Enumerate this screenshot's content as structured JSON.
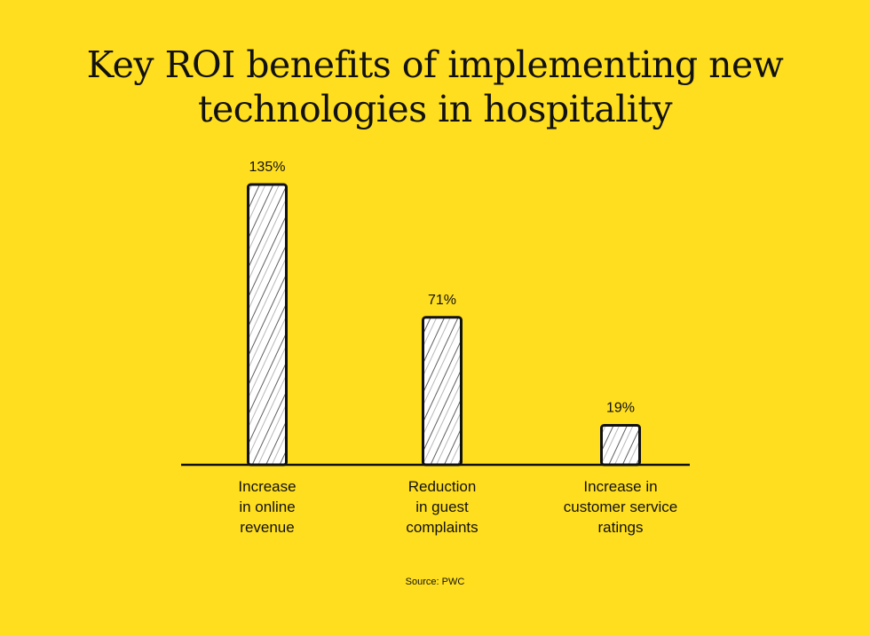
{
  "title_lines": [
    "Key ROI benefits of implementing new",
    "technologies in hospitality"
  ],
  "source": "Source: PWC",
  "colors": {
    "background": "#FFDE1F",
    "bar_fill": "#FFFFFF",
    "ink": "#111111"
  },
  "chart_data": {
    "type": "bar",
    "categories": [
      [
        "Increase",
        "in online",
        "revenue"
      ],
      [
        "Reduction",
        "in guest",
        "complaints"
      ],
      [
        "Increase in",
        "customer service",
        "ratings"
      ]
    ],
    "values": [
      135,
      71,
      19
    ],
    "value_labels": [
      "135%",
      "71%",
      "19%"
    ],
    "unit": "%",
    "ylim": [
      0,
      135
    ],
    "grid": false,
    "legend": "none"
  }
}
